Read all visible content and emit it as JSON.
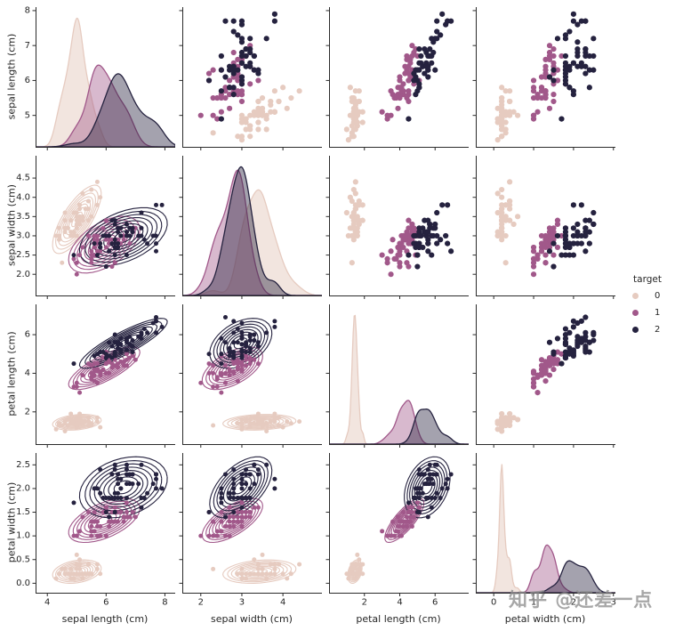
{
  "figure": {
    "watermark": "知乎 @还差一点",
    "background": "#ffffff"
  },
  "legend": {
    "title": "target",
    "items": [
      {
        "label": "0",
        "color": "#e6cbc0"
      },
      {
        "label": "1",
        "color": "#a1588a"
      },
      {
        "label": "2",
        "color": "#25223f"
      }
    ]
  },
  "chart_data": {
    "type": "scatter",
    "subtype": "pairplot",
    "grid": {
      "diag": "kde",
      "upper": "scatter",
      "lower": "kde-contour+scatter",
      "legend_position": "right"
    },
    "hue": {
      "name": "target",
      "classes": [
        "0",
        "1",
        "2"
      ],
      "colors": [
        "#e6cbc0",
        "#a1588a",
        "#25223f"
      ],
      "class_counts": [
        50,
        50,
        50
      ]
    },
    "variables": [
      {
        "label": "sepal length (cm)",
        "xlim": [
          3.6,
          8.35
        ],
        "ylim": [
          4.1,
          8.1
        ],
        "xticks": {
          "values": [
            4,
            6,
            8
          ],
          "labels": [
            "4",
            "6",
            "8"
          ]
        },
        "yticks": {
          "values": [
            5,
            6,
            7,
            8
          ],
          "labels": [
            "5",
            "6",
            "7",
            "8"
          ]
        }
      },
      {
        "label": "sepal width (cm)",
        "xlim": [
          1.55,
          4.95
        ],
        "ylim": [
          1.45,
          5.08
        ],
        "xticks": {
          "values": [
            2,
            3,
            4
          ],
          "labels": [
            "2",
            "3",
            "4"
          ]
        },
        "yticks": {
          "values": [
            2.0,
            2.5,
            3.0,
            3.5,
            4.0,
            4.5
          ],
          "labels": [
            "2.0",
            "2.5",
            "3.0",
            "3.5",
            "4.0",
            "4.5"
          ]
        }
      },
      {
        "label": "petal length (cm)",
        "xlim": [
          0.0,
          7.9
        ],
        "ylim": [
          0.33,
          7.57
        ],
        "xticks": {
          "values": [
            2,
            4,
            6
          ],
          "labels": [
            "2",
            "4",
            "6"
          ]
        },
        "yticks": {
          "values": [
            2,
            4,
            6
          ],
          "labels": [
            "2",
            "4",
            "6"
          ]
        }
      },
      {
        "label": "petal width (cm)",
        "xlim": [
          -0.45,
          3.05
        ],
        "ylim": [
          -0.2,
          2.75
        ],
        "xticks": {
          "values": [
            0,
            1,
            2,
            3
          ],
          "labels": [
            "0",
            "1",
            "2",
            "3"
          ]
        },
        "yticks": {
          "values": [
            0.0,
            0.5,
            1.0,
            1.5,
            2.0,
            2.5
          ],
          "labels": [
            "0.0",
            "0.5",
            "1.0",
            "1.5",
            "2.0",
            "2.5"
          ]
        }
      }
    ],
    "points": {
      "sepal_length": [
        5.1,
        4.9,
        4.7,
        4.6,
        5.0,
        5.4,
        4.6,
        5.0,
        4.4,
        4.9,
        5.4,
        4.8,
        4.8,
        4.3,
        5.8,
        5.7,
        5.4,
        5.1,
        5.7,
        5.1,
        5.4,
        5.1,
        4.6,
        5.1,
        4.8,
        5.0,
        5.0,
        5.2,
        5.2,
        4.7,
        4.8,
        5.4,
        5.2,
        5.5,
        4.9,
        5.0,
        5.5,
        4.9,
        4.4,
        5.1,
        5.0,
        4.5,
        4.4,
        5.0,
        5.1,
        4.8,
        5.1,
        4.6,
        5.3,
        5.0,
        7.0,
        6.4,
        6.9,
        5.5,
        6.5,
        5.7,
        6.3,
        4.9,
        6.6,
        5.2,
        5.0,
        5.9,
        6.0,
        6.1,
        5.6,
        6.7,
        5.6,
        5.8,
        6.2,
        5.6,
        5.9,
        6.1,
        6.3,
        6.1,
        6.4,
        6.6,
        6.8,
        6.7,
        6.0,
        5.7,
        5.5,
        5.5,
        5.8,
        6.0,
        5.4,
        6.0,
        6.7,
        6.3,
        5.6,
        5.5,
        5.5,
        6.1,
        5.8,
        5.0,
        5.6,
        5.7,
        5.7,
        6.2,
        5.1,
        5.7,
        6.3,
        5.8,
        7.1,
        6.3,
        6.5,
        7.6,
        4.9,
        7.3,
        6.7,
        7.2,
        6.5,
        6.4,
        6.8,
        5.7,
        5.8,
        6.4,
        6.5,
        7.7,
        7.7,
        6.0,
        6.9,
        5.6,
        7.7,
        6.3,
        6.7,
        7.2,
        6.2,
        6.1,
        6.4,
        7.2,
        7.4,
        7.9,
        6.4,
        6.3,
        6.1,
        7.7,
        6.3,
        6.4,
        6.0,
        6.9,
        6.7,
        6.9,
        5.8,
        6.8,
        6.7,
        6.7,
        6.3,
        6.5,
        6.2,
        5.9
      ],
      "sepal_width": [
        3.5,
        3.0,
        3.2,
        3.1,
        3.6,
        3.9,
        3.4,
        3.4,
        2.9,
        3.1,
        3.7,
        3.4,
        3.0,
        3.0,
        4.0,
        4.4,
        3.9,
        3.5,
        3.8,
        3.8,
        3.4,
        3.7,
        3.6,
        3.3,
        3.4,
        3.0,
        3.4,
        3.5,
        3.4,
        3.2,
        3.1,
        3.4,
        4.1,
        4.2,
        3.1,
        3.2,
        3.5,
        3.6,
        3.0,
        3.4,
        3.5,
        2.3,
        3.2,
        3.5,
        3.8,
        3.0,
        3.8,
        3.2,
        3.7,
        3.3,
        3.2,
        3.2,
        3.1,
        2.3,
        2.8,
        2.8,
        3.3,
        2.4,
        2.9,
        2.7,
        2.0,
        3.0,
        2.2,
        2.9,
        2.9,
        3.1,
        3.0,
        2.7,
        2.2,
        2.5,
        3.2,
        2.8,
        2.5,
        2.8,
        2.9,
        3.0,
        2.8,
        3.0,
        2.9,
        2.6,
        2.4,
        2.4,
        2.7,
        2.7,
        3.0,
        3.4,
        3.1,
        2.3,
        3.0,
        2.5,
        2.6,
        3.0,
        2.6,
        2.3,
        2.7,
        3.0,
        2.9,
        2.9,
        2.5,
        2.8,
        3.3,
        2.7,
        3.0,
        2.9,
        3.0,
        3.0,
        2.5,
        2.9,
        2.5,
        3.6,
        3.2,
        2.7,
        3.0,
        2.5,
        2.8,
        3.2,
        3.0,
        3.8,
        2.6,
        2.2,
        3.2,
        2.8,
        2.8,
        2.7,
        3.3,
        3.2,
        2.8,
        3.0,
        2.8,
        3.0,
        2.8,
        3.8,
        2.8,
        2.8,
        2.6,
        3.0,
        3.4,
        3.1,
        3.0,
        3.1,
        3.1,
        3.1,
        2.7,
        3.2,
        3.3,
        3.0,
        2.5,
        3.0,
        3.4,
        3.0
      ],
      "petal_length": [
        1.4,
        1.4,
        1.3,
        1.5,
        1.4,
        1.7,
        1.4,
        1.5,
        1.4,
        1.5,
        1.5,
        1.6,
        1.4,
        1.1,
        1.2,
        1.5,
        1.3,
        1.4,
        1.7,
        1.5,
        1.7,
        1.5,
        1.0,
        1.7,
        1.9,
        1.6,
        1.6,
        1.5,
        1.4,
        1.6,
        1.6,
        1.5,
        1.5,
        1.4,
        1.5,
        1.2,
        1.3,
        1.4,
        1.3,
        1.5,
        1.3,
        1.3,
        1.3,
        1.6,
        1.9,
        1.4,
        1.6,
        1.4,
        1.5,
        1.4,
        4.7,
        4.5,
        4.9,
        4.0,
        4.6,
        4.5,
        4.7,
        3.3,
        4.6,
        3.9,
        3.5,
        4.2,
        4.0,
        4.7,
        3.6,
        4.4,
        4.5,
        4.1,
        4.5,
        3.9,
        4.8,
        4.0,
        4.9,
        4.7,
        4.3,
        4.4,
        4.8,
        5.0,
        4.5,
        3.5,
        3.8,
        3.7,
        3.9,
        5.1,
        4.5,
        4.5,
        4.7,
        4.4,
        4.1,
        4.0,
        4.4,
        4.6,
        4.0,
        3.3,
        4.2,
        4.2,
        4.2,
        4.3,
        3.0,
        4.1,
        6.0,
        5.1,
        5.9,
        5.6,
        5.8,
        6.6,
        4.5,
        6.3,
        5.8,
        6.1,
        5.1,
        5.3,
        5.5,
        5.0,
        5.1,
        5.3,
        5.5,
        6.7,
        6.9,
        5.0,
        5.7,
        4.9,
        6.7,
        4.9,
        5.7,
        6.0,
        4.8,
        4.9,
        5.6,
        5.8,
        6.1,
        6.4,
        5.6,
        5.1,
        5.6,
        6.1,
        5.6,
        5.5,
        4.8,
        5.4,
        5.6,
        5.1,
        5.1,
        5.9,
        5.7,
        5.2,
        5.0,
        5.2,
        5.4,
        5.1
      ],
      "petal_width": [
        0.2,
        0.2,
        0.2,
        0.2,
        0.2,
        0.4,
        0.3,
        0.2,
        0.2,
        0.1,
        0.2,
        0.2,
        0.1,
        0.1,
        0.2,
        0.4,
        0.4,
        0.3,
        0.3,
        0.3,
        0.2,
        0.4,
        0.2,
        0.5,
        0.2,
        0.2,
        0.4,
        0.2,
        0.2,
        0.2,
        0.2,
        0.4,
        0.1,
        0.2,
        0.2,
        0.2,
        0.2,
        0.1,
        0.2,
        0.2,
        0.3,
        0.3,
        0.2,
        0.6,
        0.4,
        0.3,
        0.2,
        0.2,
        0.2,
        0.2,
        1.4,
        1.5,
        1.5,
        1.3,
        1.5,
        1.3,
        1.6,
        1.0,
        1.3,
        1.4,
        1.0,
        1.5,
        1.0,
        1.4,
        1.3,
        1.4,
        1.5,
        1.0,
        1.5,
        1.1,
        1.8,
        1.3,
        1.5,
        1.2,
        1.3,
        1.4,
        1.4,
        1.7,
        1.5,
        1.0,
        1.1,
        1.0,
        1.2,
        1.6,
        1.5,
        1.6,
        1.5,
        1.3,
        1.3,
        1.3,
        1.2,
        1.4,
        1.2,
        1.0,
        1.3,
        1.2,
        1.3,
        1.3,
        1.1,
        1.3,
        2.5,
        1.9,
        2.1,
        1.8,
        2.2,
        2.1,
        1.7,
        1.8,
        1.8,
        2.5,
        2.0,
        1.9,
        2.1,
        2.0,
        2.4,
        2.3,
        1.8,
        2.2,
        2.3,
        1.5,
        2.3,
        2.0,
        2.0,
        1.8,
        2.1,
        1.8,
        1.8,
        1.8,
        2.1,
        1.6,
        1.9,
        2.0,
        2.2,
        1.5,
        1.4,
        2.3,
        2.4,
        1.8,
        1.8,
        2.1,
        2.4,
        2.3,
        1.9,
        2.3,
        2.5,
        2.3,
        1.9,
        2.0,
        2.3,
        1.8
      ]
    }
  }
}
